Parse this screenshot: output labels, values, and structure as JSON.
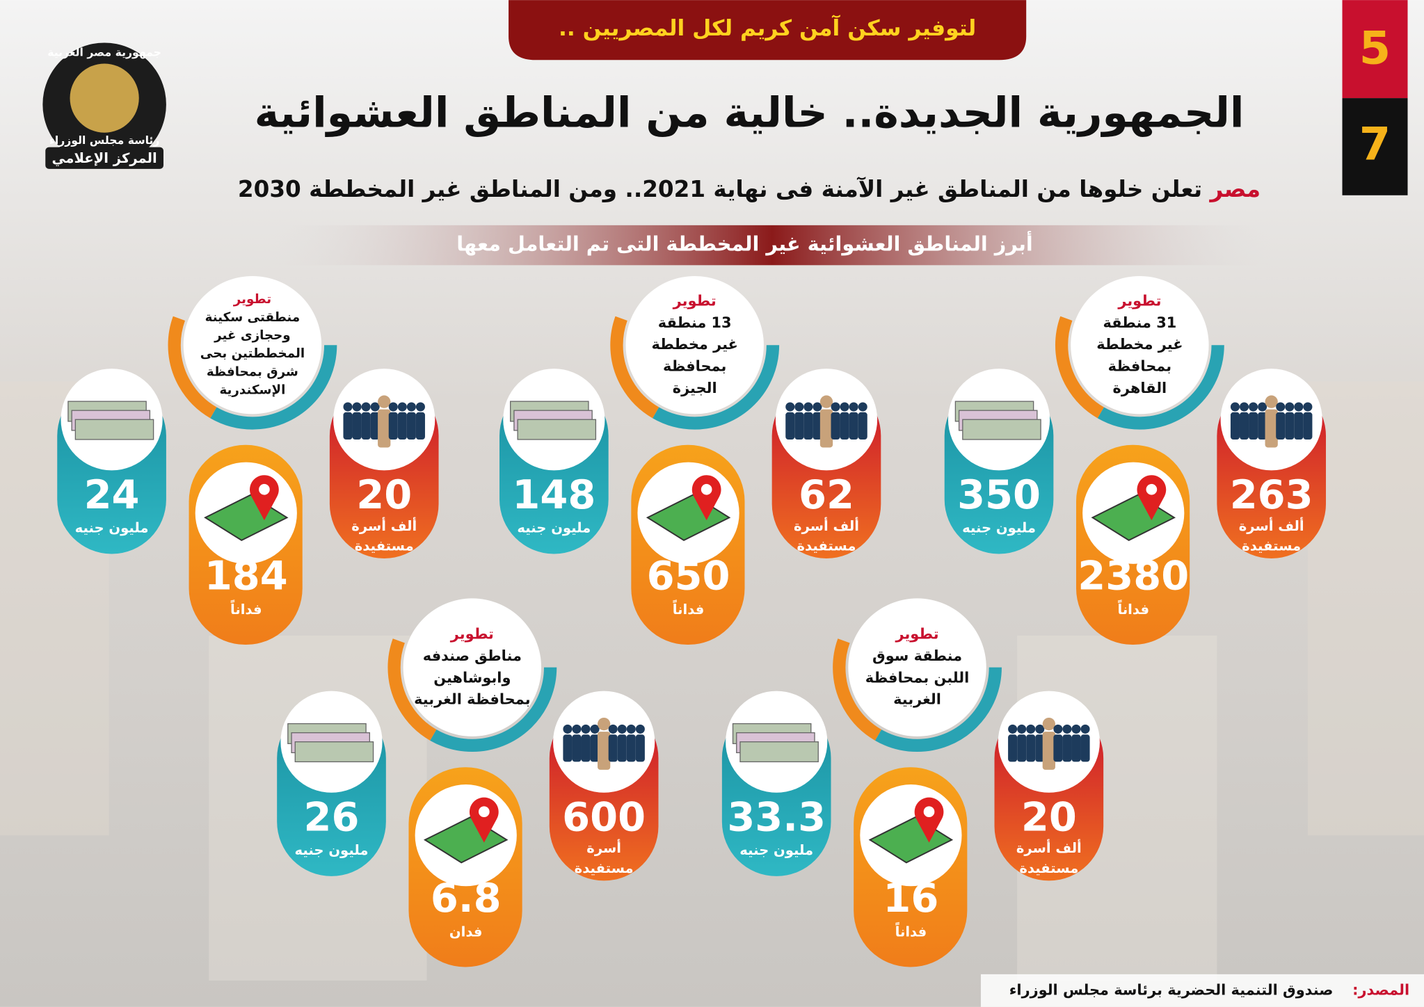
{
  "header": {
    "banner": "لتوفير سكن آمن كريم لكل المصريين ..",
    "page_current": "5",
    "page_total": "7",
    "logo_top": "جمهورية مصر العربية",
    "logo_middle": "رئاسة مجلس الوزراء",
    "logo_bottom": "المركز الإعلامي",
    "title": "الجمهورية الجديدة.. خالية من المناطق العشوائية",
    "subtitle_highlight": "مصر",
    "subtitle": "تعلن خلوها من المناطق غير الآمنة فى نهاية 2021.. ومن المناطق غير المخططة 2030",
    "section": "أبرز المناطق العشوائية غير المخططة التى تم التعامل معها"
  },
  "panels": [
    {
      "title": [
        "تطوير",
        "31 منطقة",
        "غير مخططة",
        "بمحافظة",
        "القاهرة"
      ],
      "families": 263,
      "families_unit": [
        "ألف أسرة",
        "مستفيدة"
      ],
      "cost": 350,
      "cost_unit": "مليون جنيه",
      "area": 2380,
      "area_unit": "فداناً"
    },
    {
      "title": [
        "تطوير",
        "13 منطقة",
        "غير مخططة",
        "بمحافظة",
        "الجيزة"
      ],
      "families": 62,
      "families_unit": [
        "ألف أسرة",
        "مستفيدة"
      ],
      "cost": 148,
      "cost_unit": "مليون جنيه",
      "area": 650,
      "area_unit": "فداناً"
    },
    {
      "title": [
        "تطوير",
        "منطقتى سكينة",
        "وحجازى غير",
        "المخططتين بحى",
        "شرق بمحافظة",
        "الإسكندرية"
      ],
      "families": 20,
      "families_unit": [
        "ألف أسرة",
        "مستفيدة"
      ],
      "cost": 24,
      "cost_unit": "مليون جنيه",
      "area": 184,
      "area_unit": "فداناً"
    },
    {
      "title": [
        "تطوير",
        "منطقة سوق",
        "اللبن بمحافظة",
        "الغربية"
      ],
      "families": 20,
      "families_unit": [
        "ألف أسرة",
        "مستفيدة"
      ],
      "cost": 33.3,
      "cost_unit": "مليون جنيه",
      "area": 16,
      "area_unit": "فداناً"
    },
    {
      "title": [
        "تطوير",
        "مناطق صندفه",
        "وابوشاهين",
        "بمحافظة الغربية"
      ],
      "families": 600,
      "families_unit": [
        "أسرة",
        "مستفيدة"
      ],
      "cost": 26,
      "cost_unit": "مليون جنيه",
      "area": 6.8,
      "area_unit": "فدان"
    }
  ],
  "footer": {
    "source_label": "المصدر:",
    "source": "صندوق التنمية الحضرية برئاسة مجلس الوزراء"
  }
}
